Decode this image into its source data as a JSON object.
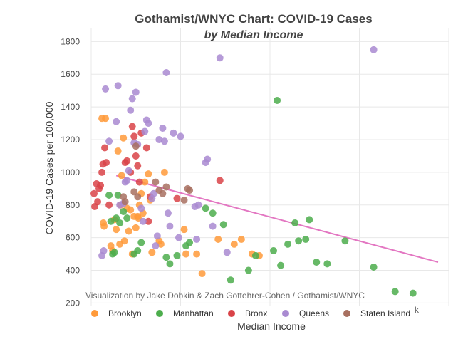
{
  "chart_data": {
    "type": "scatter",
    "title": "Gothamist/WNYC Chart: COVID-19 Cases",
    "subtitle": "by Median Income",
    "xlabel": "Median Income",
    "ylabel": "COVID-19 Cases per 100,000",
    "credit": "Visualization by Jake Dobkin & Zach Gottehrer-Cohen / Gothamist/WNYC",
    "cut_text": "k",
    "xlim": [
      0,
      100
    ],
    "ylim": [
      180,
      1880
    ],
    "yticks": [
      200,
      400,
      600,
      800,
      1000,
      1200,
      1400,
      1600,
      1800
    ],
    "grid": true,
    "legend_position": "bottom",
    "trendline": {
      "color": "#e377c2",
      "x": [
        7,
        97
      ],
      "y": [
        980,
        450
      ]
    },
    "series": [
      {
        "name": "Brooklyn",
        "color": "#ff9a3a",
        "x": [
          3,
          4,
          3.4,
          3.6,
          5.5,
          6,
          6.5,
          7,
          7.5,
          8,
          8.2,
          8.5,
          9,
          9.3,
          10,
          10.5,
          11,
          11.5,
          12,
          12.5,
          13,
          13.2,
          13.5,
          14,
          14.5,
          15,
          16,
          16.5,
          17,
          19,
          19.5,
          20.5,
          26,
          26.5,
          29.5,
          35.5,
          31,
          40,
          42,
          45,
          47
        ],
        "y": [
          1330,
          1330,
          690,
          670,
          550,
          520,
          710,
          650,
          1130,
          560,
          800,
          980,
          1210,
          580,
          780,
          640,
          770,
          500,
          730,
          660,
          730,
          720,
          800,
          870,
          750,
          940,
          990,
          830,
          510,
          580,
          560,
          1000,
          650,
          500,
          500,
          590,
          380,
          560,
          590,
          500,
          490
        ]
      },
      {
        "name": "Manhattan",
        "color": "#4cad4c",
        "x": [
          5,
          5.5,
          6,
          6.5,
          7,
          7.5,
          8,
          9,
          10,
          12,
          13,
          14,
          21,
          22,
          24,
          26.5,
          27.5,
          32,
          34,
          37,
          39,
          44,
          46,
          51,
          52,
          53,
          55,
          57,
          58,
          60,
          61,
          63,
          66,
          71,
          79,
          85,
          90
        ],
        "y": [
          860,
          700,
          500,
          510,
          720,
          860,
          690,
          760,
          720,
          500,
          520,
          570,
          480,
          440,
          490,
          550,
          570,
          780,
          750,
          680,
          340,
          400,
          490,
          520,
          1440,
          430,
          560,
          690,
          580,
          590,
          710,
          450,
          440,
          580,
          420,
          270,
          260
        ]
      },
      {
        "name": "Bronx",
        "color": "#d94348",
        "x": [
          0.8,
          1,
          1.5,
          1.8,
          2.2,
          2.6,
          3,
          3.3,
          3.8,
          4.2,
          5,
          9.5,
          10,
          11,
          11.5,
          12,
          12.5,
          13,
          13.5,
          14,
          15.5,
          16,
          16.5,
          24,
          36
        ],
        "y": [
          870,
          790,
          930,
          820,
          900,
          920,
          1000,
          1050,
          1150,
          1060,
          800,
          1060,
          1070,
          1000,
          1280,
          1220,
          1100,
          1040,
          940,
          1240,
          1150,
          700,
          850,
          840,
          950
        ]
      },
      {
        "name": "Queens",
        "color": "#a98ad1",
        "x": [
          3,
          3.5,
          4,
          5,
          7,
          7.5,
          8,
          9,
          9.5,
          10,
          10.5,
          11,
          11.5,
          12,
          12.5,
          13,
          14,
          14.5,
          15,
          15.5,
          16,
          17,
          17.5,
          18,
          18.5,
          19,
          20,
          20.5,
          21,
          21.5,
          22,
          23,
          24.5,
          25,
          29,
          29.5,
          30,
          32,
          32.5,
          34,
          36,
          38,
          79
        ],
        "y": [
          490,
          520,
          1510,
          1190,
          1310,
          1530,
          800,
          810,
          940,
          950,
          1010,
          1380,
          1450,
          1180,
          1490,
          1170,
          780,
          700,
          1250,
          1320,
          1300,
          840,
          870,
          550,
          610,
          1200,
          1270,
          1190,
          1610,
          750,
          670,
          1240,
          600,
          1220,
          790,
          590,
          800,
          1060,
          1080,
          670,
          1700,
          510,
          1750
        ]
      },
      {
        "name": "Staten Island",
        "color": "#a87060",
        "x": [
          9,
          9.5,
          12,
          12.5,
          13,
          18,
          19,
          20,
          21,
          26,
          27,
          27.5
        ],
        "y": [
          850,
          820,
          880,
          1160,
          850,
          940,
          890,
          870,
          910,
          830,
          900,
          890
        ]
      }
    ]
  }
}
